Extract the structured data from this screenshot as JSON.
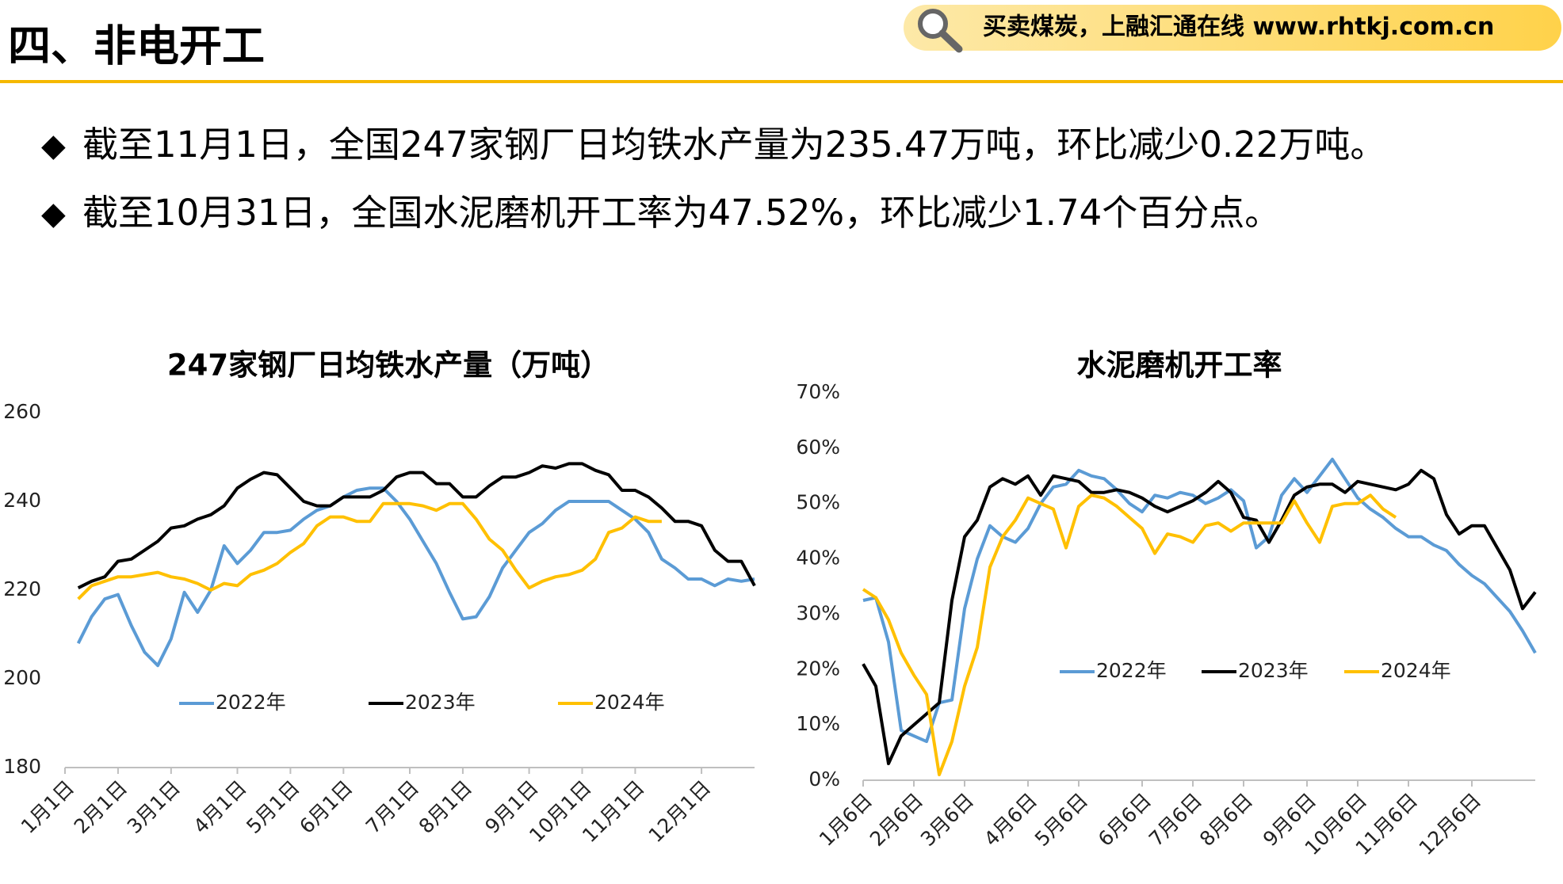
{
  "header": {
    "title": "四、非电开工",
    "banner": "买卖煤炭，上融汇通在线 www.rhtkj.com.cn"
  },
  "bullets": [
    "截至11月1日，全国247家钢厂日均铁水产量为235.47万吨，环比减少0.22万吨。",
    "截至10月31日，全国水泥磨机开工率为47.52%，环比减少1.74个百分点。"
  ],
  "chart_data": [
    {
      "type": "line",
      "title": "247家钢厂日均铁水产量（万吨）",
      "categories": [
        "1月1日",
        null,
        null,
        null,
        "2月1日",
        null,
        null,
        null,
        "3月1日",
        null,
        null,
        null,
        null,
        "4月1日",
        null,
        null,
        null,
        "5月1日",
        null,
        null,
        null,
        "6月1日",
        null,
        null,
        null,
        null,
        "7月1日",
        null,
        null,
        null,
        "8月1日",
        null,
        null,
        null,
        null,
        "9月1日",
        null,
        null,
        null,
        "10月1日",
        null,
        null,
        null,
        "11月1日",
        null,
        null,
        null,
        null,
        "12月1日",
        null,
        null,
        null,
        null
      ],
      "series": [
        {
          "name": "2022年",
          "color": "#5b9bd5",
          "values": [
            null,
            208,
            214,
            218,
            219,
            212,
            206,
            203,
            209,
            219.5,
            215,
            220,
            230,
            226,
            229,
            233,
            233,
            233.5,
            236,
            238,
            239,
            241,
            242.5,
            243,
            243,
            240,
            236,
            231,
            226,
            219.5,
            213.5,
            214,
            218.5,
            225,
            229,
            233,
            235,
            238,
            240,
            240,
            240,
            240,
            238,
            236,
            233,
            227,
            225,
            222.5,
            222.5,
            221,
            222.5,
            222,
            222.5
          ]
        },
        {
          "name": "2023年",
          "color": "#000000",
          "values": [
            null,
            220.5,
            222,
            223,
            226.5,
            227,
            229,
            231,
            234,
            234.5,
            236,
            237,
            239,
            243,
            245,
            246.5,
            246,
            243,
            240,
            239,
            239,
            241,
            241,
            241,
            242.5,
            245.5,
            246.5,
            246.5,
            244,
            244,
            241,
            241,
            243.5,
            245.5,
            245.5,
            246.5,
            248,
            247.5,
            248.5,
            248.5,
            247,
            246,
            242.5,
            242.5,
            241,
            238.5,
            235.5,
            235.5,
            234.5,
            229,
            226.5,
            226.5,
            221
          ]
        },
        {
          "name": "2024年",
          "color": "#ffc000",
          "values": [
            null,
            218,
            221,
            222,
            223,
            223,
            223.5,
            224,
            223,
            222.5,
            221.5,
            220,
            221.5,
            221,
            223.5,
            224.5,
            226,
            228.5,
            230.5,
            234.5,
            236.5,
            236.5,
            235.5,
            235.5,
            239.5,
            239.5,
            239.5,
            239,
            238,
            239.5,
            239.5,
            236,
            231.5,
            229,
            224.5,
            220.5,
            222,
            223,
            223.5,
            224.5,
            227,
            233,
            234,
            236.5,
            235.5,
            235.5,
            null,
            null,
            null,
            null,
            null,
            null,
            null
          ]
        }
      ],
      "ylim": [
        180,
        260
      ],
      "yticks": [
        180,
        200,
        220,
        240,
        260
      ],
      "legend": "bottom"
    },
    {
      "type": "line",
      "title": "水泥磨机开工率",
      "categories": [
        "1月6日",
        null,
        null,
        null,
        "2月6日",
        null,
        null,
        null,
        "3月6日",
        null,
        null,
        null,
        null,
        "4月6日",
        null,
        null,
        null,
        "5月6日",
        null,
        null,
        null,
        null,
        "6月6日",
        null,
        null,
        null,
        "7月6日",
        null,
        null,
        null,
        "8月6日",
        null,
        null,
        null,
        null,
        "9月6日",
        null,
        null,
        null,
        "10月6日",
        null,
        null,
        null,
        "11月6日",
        null,
        null,
        null,
        null,
        "12月6日",
        null,
        null,
        null,
        null,
        null
      ],
      "series": [
        {
          "name": "2022年",
          "color": "#5b9bd5",
          "values": [
            32.5,
            33,
            25,
            9,
            8,
            7,
            14,
            14.5,
            31,
            40,
            46,
            44,
            43,
            45.5,
            50,
            53,
            53.5,
            56,
            55,
            54.5,
            52.5,
            50,
            48.5,
            51.5,
            51,
            52,
            51.5,
            50,
            51,
            52.5,
            50.5,
            42,
            44,
            51.5,
            54.5,
            52,
            55,
            58,
            54.5,
            51,
            49,
            47.5,
            45.5,
            44,
            44,
            42.5,
            41.5,
            39,
            37,
            35.5,
            33,
            30.5,
            27,
            23
          ]
        },
        {
          "name": "2023年",
          "color": "#000000",
          "values": [
            21,
            17,
            3,
            8,
            10,
            12,
            14,
            32.5,
            44,
            47,
            53,
            54.5,
            53.5,
            55,
            51.5,
            55,
            54.5,
            54,
            52,
            52,
            52.5,
            52,
            51,
            49.5,
            48.5,
            49.5,
            50.5,
            52,
            54,
            52,
            47.5,
            47,
            43,
            47,
            51.5,
            53,
            53.5,
            53.5,
            52,
            54,
            53.5,
            53,
            52.5,
            53.5,
            56,
            54.5,
            48,
            44.5,
            46,
            46,
            42,
            38,
            31,
            34
          ]
        },
        {
          "name": "2024年",
          "color": "#ffc000",
          "values": [
            34.5,
            33,
            29,
            23,
            19,
            15.5,
            1,
            7,
            17,
            24,
            38.5,
            44,
            47,
            51,
            50,
            49,
            42,
            49.5,
            51.5,
            51,
            49.5,
            47.5,
            45.5,
            41,
            44.5,
            44,
            43,
            46,
            46.5,
            45,
            46.5,
            46.5,
            46.5,
            46.5,
            50.5,
            46.5,
            43,
            49.5,
            50,
            50,
            51.5,
            49,
            47.5,
            null,
            null,
            null,
            null,
            null,
            null,
            null,
            null,
            null,
            null,
            null
          ]
        }
      ],
      "ylim": [
        0,
        70
      ],
      "yticks": [
        {
          "value": 0,
          "label": "0%"
        },
        {
          "value": 10,
          "label": "10%"
        },
        {
          "value": 20,
          "label": "20%"
        },
        {
          "value": 30,
          "label": "30%"
        },
        {
          "value": 40,
          "label": "40%"
        },
        {
          "value": 50,
          "label": "50%"
        },
        {
          "value": 60,
          "label": "60%"
        },
        {
          "value": 70,
          "label": "70%"
        }
      ],
      "legend": "center"
    }
  ]
}
